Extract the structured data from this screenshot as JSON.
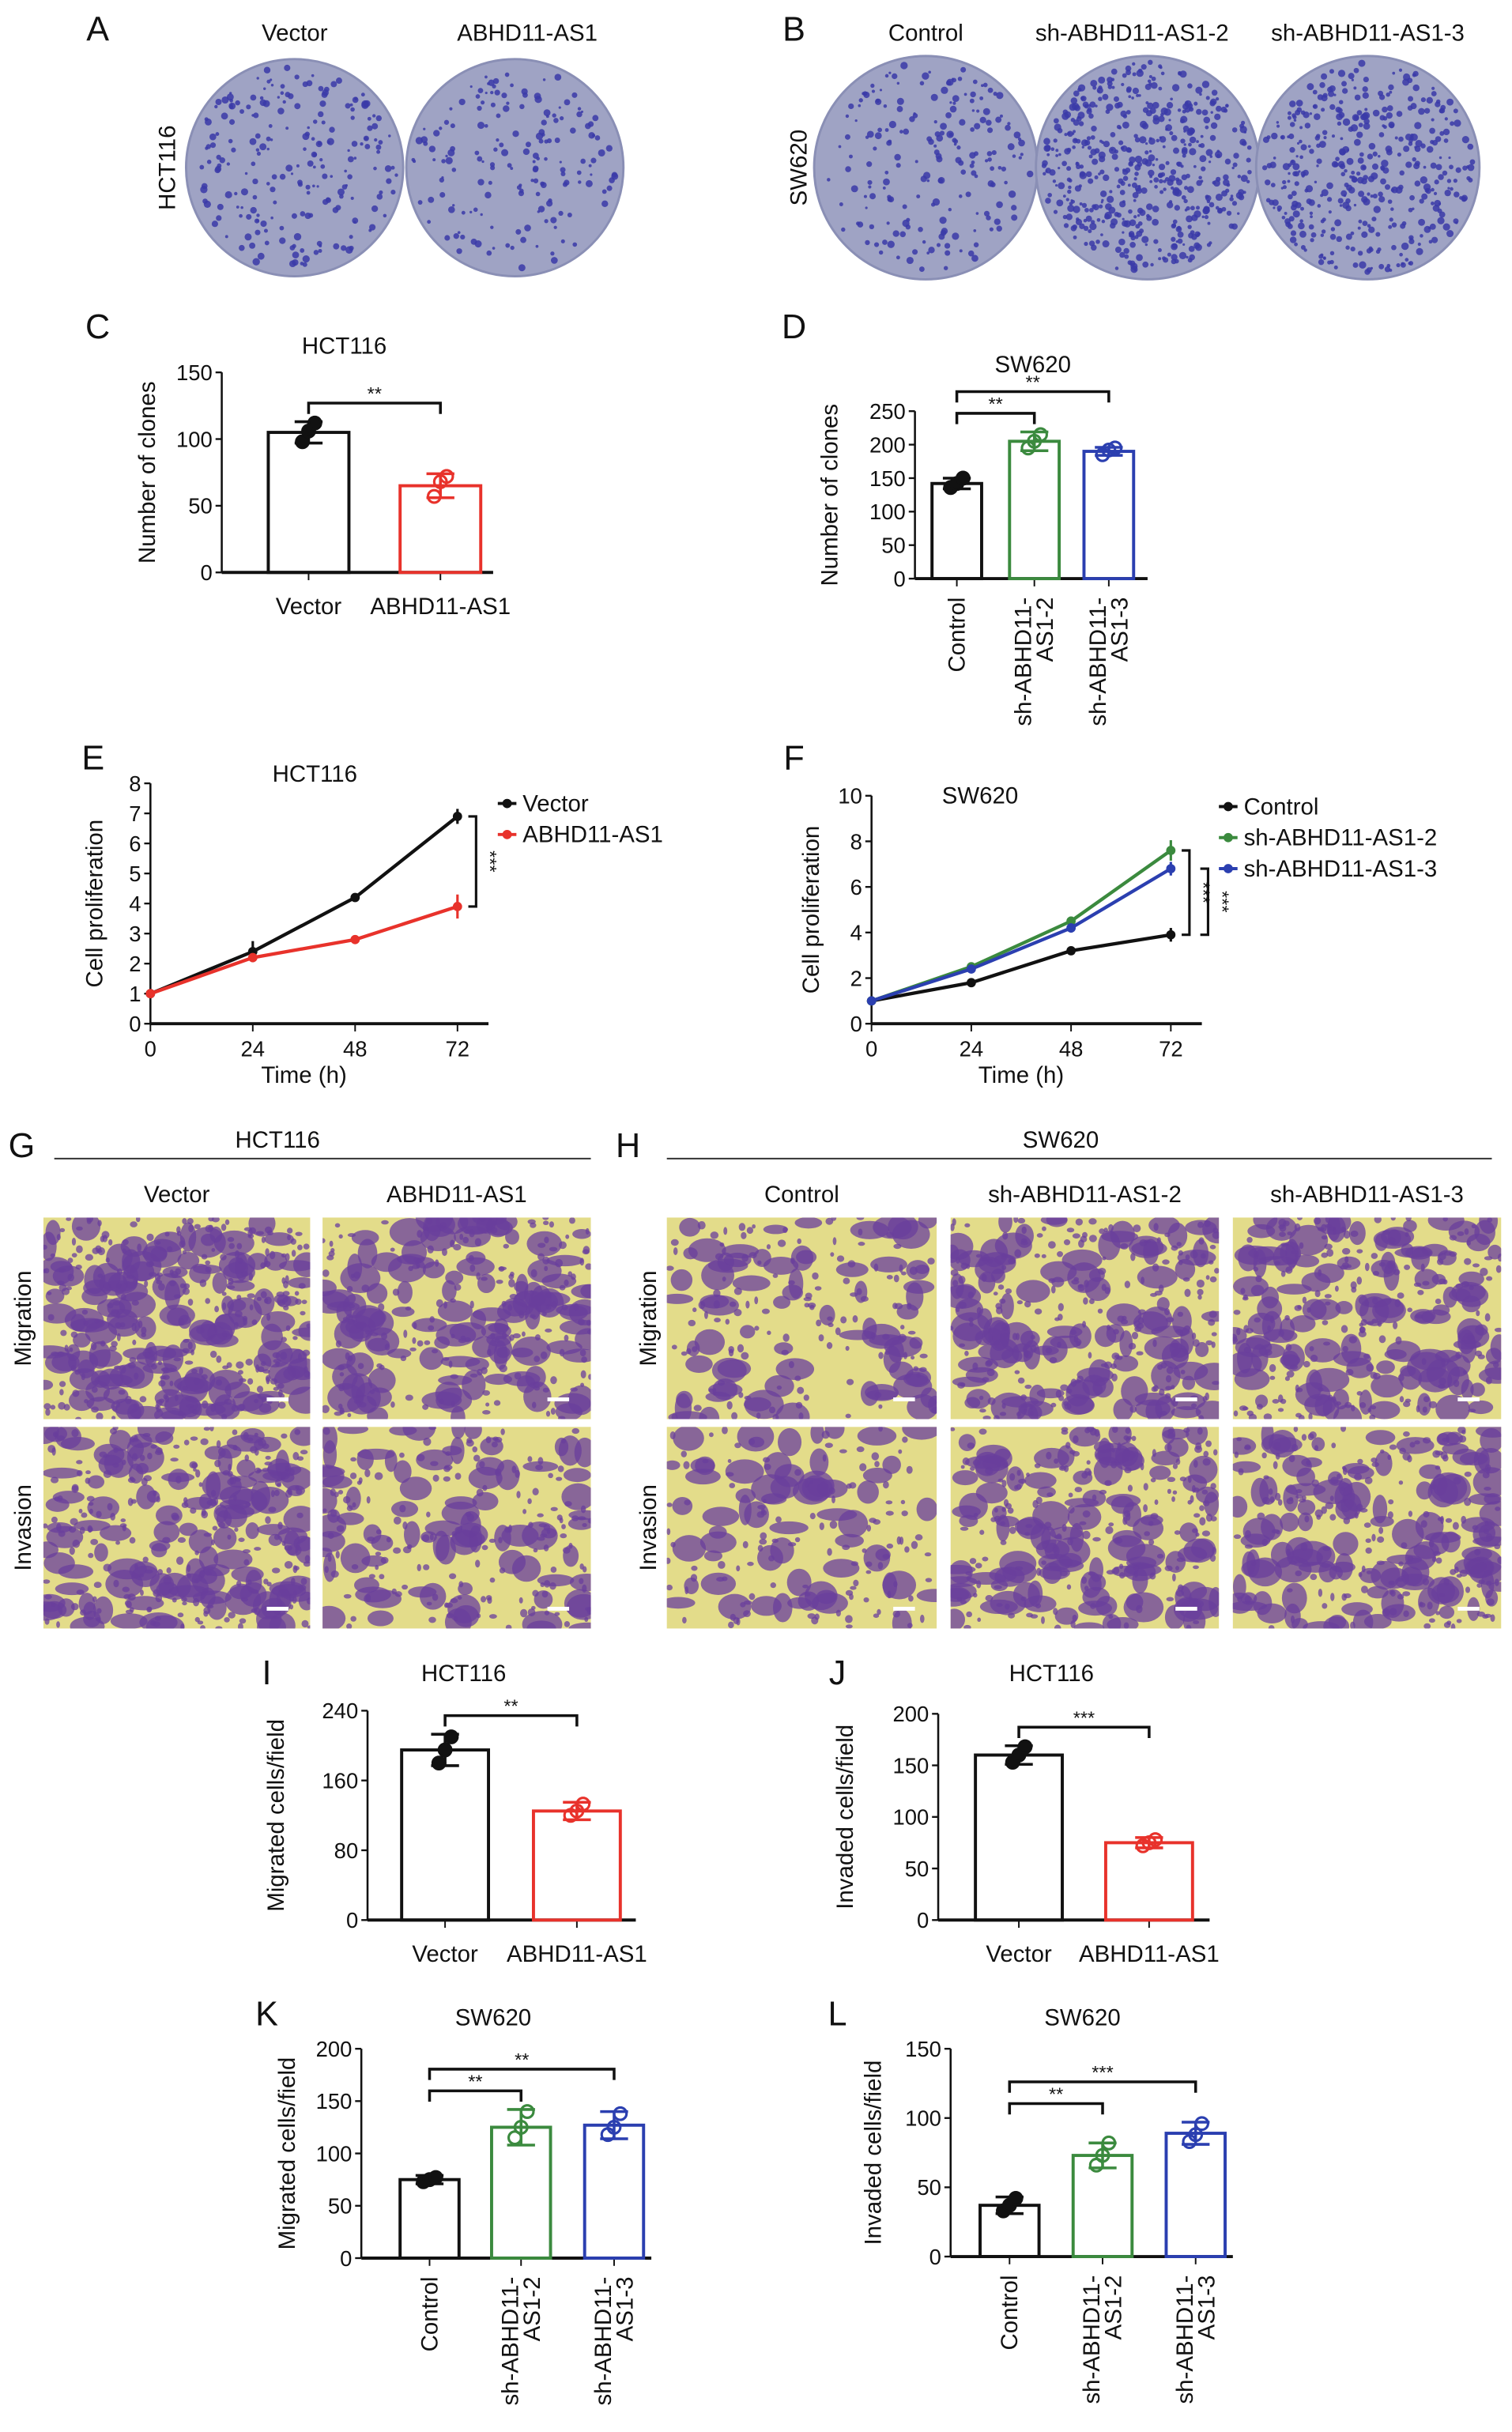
{
  "panels": {
    "A": {
      "letter": "A",
      "row_label": "HCT116",
      "col_labels": [
        "Vector",
        "ABHD11-AS1"
      ]
    },
    "B": {
      "letter": "B",
      "row_label": "SW620",
      "col_labels": [
        "Control",
        "sh-ABHD11-AS1-2",
        "sh-ABHD11-AS1-3"
      ]
    },
    "G": {
      "letter": "G",
      "header": "HCT116",
      "col_labels": [
        "Vector",
        "ABHD11-AS1"
      ],
      "row_labels": [
        "Migration",
        "Invasion"
      ]
    },
    "H": {
      "letter": "H",
      "header": "SW620",
      "col_labels": [
        "Control",
        "sh-ABHD11-AS1-2",
        "sh-ABHD11-AS1-3"
      ],
      "row_labels": [
        "Migration",
        "Invasion"
      ]
    }
  },
  "colors": {
    "black": "#111111",
    "red": "#e8322b",
    "green": "#3b8a3e",
    "blue": "#2b3fb0",
    "plate": "#9fa3c4",
    "colony": "#3a3aa8",
    "membrane": "#e3dc8a",
    "stain": "#6a3f9c"
  },
  "chart_data": [
    {
      "id": "C",
      "letter": "C",
      "type": "bar",
      "title": "HCT116",
      "ylabel": "Number of clones",
      "xlabel": "",
      "categories": [
        "Vector",
        "ABHD11-AS1"
      ],
      "values": [
        105,
        65
      ],
      "errors": [
        8,
        9
      ],
      "points": [
        [
          98,
          106,
          112
        ],
        [
          57,
          68,
          72
        ]
      ],
      "colors": [
        "#111111",
        "#e8322b"
      ],
      "ylim": [
        0,
        150
      ],
      "yticks": [
        0,
        50,
        100,
        150
      ],
      "xlabel_rotated": false,
      "significance": [
        {
          "from": 0,
          "to": 1,
          "label": "**"
        }
      ]
    },
    {
      "id": "D",
      "letter": "D",
      "type": "bar",
      "title": "SW620",
      "ylabel": "Number of clones",
      "xlabel": "",
      "categories": [
        "Control",
        "sh-ABHD11-AS1-2",
        "sh-ABHD11-AS1-3"
      ],
      "category_lines": [
        [
          "Control"
        ],
        [
          "sh-ABHD11-",
          "AS1-2"
        ],
        [
          "sh-ABHD11-",
          "AS1-3"
        ]
      ],
      "values": [
        142,
        205,
        190
      ],
      "errors": [
        8,
        14,
        6
      ],
      "points": [
        [
          136,
          142,
          150
        ],
        [
          195,
          205,
          215
        ],
        [
          185,
          192,
          195
        ]
      ],
      "colors": [
        "#111111",
        "#3b8a3e",
        "#2b3fb0"
      ],
      "ylim": [
        0,
        250
      ],
      "yticks": [
        0,
        50,
        100,
        150,
        200,
        250
      ],
      "xlabel_rotated": true,
      "significance": [
        {
          "from": 0,
          "to": 1,
          "label": "**"
        },
        {
          "from": 0,
          "to": 2,
          "label": "**"
        }
      ]
    },
    {
      "id": "E",
      "letter": "E",
      "type": "line",
      "title": "HCT116",
      "ylabel": "Cell proliferation",
      "xlabel": "Time (h)",
      "x": [
        0,
        24,
        48,
        72
      ],
      "xticks": [
        0,
        24,
        48,
        72
      ],
      "ylim": [
        0,
        8
      ],
      "yticks": [
        0,
        1,
        2,
        3,
        4,
        5,
        6,
        7,
        8
      ],
      "series": [
        {
          "name": "Vector",
          "values": [
            1.0,
            2.4,
            4.2,
            6.9
          ],
          "errors": [
            0.05,
            0.35,
            0.08,
            0.25
          ],
          "color": "#111111"
        },
        {
          "name": "ABHD11-AS1",
          "values": [
            1.0,
            2.2,
            2.8,
            3.9
          ],
          "errors": [
            0.05,
            0.1,
            0.15,
            0.4
          ],
          "color": "#e8322b"
        }
      ],
      "legend": "top-right",
      "significance": [
        {
          "label": "***",
          "series": [
            0,
            1
          ]
        }
      ]
    },
    {
      "id": "F",
      "letter": "F",
      "type": "line",
      "title": "SW620",
      "ylabel": "Cell proliferation",
      "xlabel": "Time (h)",
      "x": [
        0,
        24,
        48,
        72
      ],
      "xticks": [
        0,
        24,
        48,
        72
      ],
      "ylim": [
        0,
        10
      ],
      "yticks": [
        0,
        2,
        4,
        6,
        8,
        10
      ],
      "series": [
        {
          "name": "Control",
          "values": [
            1.0,
            1.8,
            3.2,
            3.9
          ],
          "errors": [
            0.05,
            0.1,
            0.1,
            0.3
          ],
          "color": "#111111"
        },
        {
          "name": "sh-ABHD11-AS1-2",
          "values": [
            1.0,
            2.5,
            4.5,
            7.6
          ],
          "errors": [
            0.05,
            0.15,
            0.2,
            0.45
          ],
          "color": "#3b8a3e"
        },
        {
          "name": "sh-ABHD11-AS1-3",
          "values": [
            1.0,
            2.4,
            4.2,
            6.8
          ],
          "errors": [
            0.05,
            0.15,
            0.2,
            0.3
          ],
          "color": "#2b3fb0"
        }
      ],
      "legend": "top-right",
      "significance": [
        {
          "label": "***",
          "series": [
            0,
            1
          ]
        },
        {
          "label": "***",
          "series": [
            0,
            2
          ]
        }
      ]
    },
    {
      "id": "I",
      "letter": "I",
      "type": "bar",
      "title": "HCT116",
      "ylabel": "Migrated cells/field",
      "xlabel": "",
      "categories": [
        "Vector",
        "ABHD11-AS1"
      ],
      "values": [
        195,
        125
      ],
      "errors": [
        18,
        10
      ],
      "points": [
        [
          180,
          195,
          210
        ],
        [
          120,
          125,
          133
        ]
      ],
      "colors": [
        "#111111",
        "#e8322b"
      ],
      "ylim": [
        0,
        240
      ],
      "yticks": [
        0,
        80,
        160,
        240
      ],
      "xlabel_rotated": false,
      "significance": [
        {
          "from": 0,
          "to": 1,
          "label": "**"
        }
      ]
    },
    {
      "id": "J",
      "letter": "J",
      "type": "bar",
      "title": "HCT116",
      "ylabel": "Invaded cells/field",
      "xlabel": "",
      "categories": [
        "Vector",
        "ABHD11-AS1"
      ],
      "values": [
        160,
        75
      ],
      "errors": [
        9,
        5
      ],
      "points": [
        [
          153,
          160,
          168
        ],
        [
          72,
          75,
          78
        ]
      ],
      "colors": [
        "#111111",
        "#e8322b"
      ],
      "ylim": [
        0,
        200
      ],
      "yticks": [
        0,
        50,
        100,
        150,
        200
      ],
      "xlabel_rotated": false,
      "significance": [
        {
          "from": 0,
          "to": 1,
          "label": "***"
        }
      ]
    },
    {
      "id": "K",
      "letter": "K",
      "type": "bar",
      "title": "SW620",
      "ylabel": "Migrated cells/field",
      "xlabel": "",
      "categories": [
        "Control",
        "sh-ABHD11-AS1-2",
        "sh-ABHD11-AS1-3"
      ],
      "category_lines": [
        [
          "Control"
        ],
        [
          "sh-ABHD11-",
          "AS1-2"
        ],
        [
          "sh-ABHD11-",
          "AS1-3"
        ]
      ],
      "values": [
        75,
        125,
        127
      ],
      "errors": [
        4,
        17,
        13
      ],
      "points": [
        [
          73,
          75,
          77
        ],
        [
          115,
          125,
          140
        ],
        [
          118,
          125,
          138
        ]
      ],
      "colors": [
        "#111111",
        "#3b8a3e",
        "#2b3fb0"
      ],
      "ylim": [
        0,
        200
      ],
      "yticks": [
        0,
        50,
        100,
        150,
        200
      ],
      "xlabel_rotated": true,
      "significance": [
        {
          "from": 0,
          "to": 1,
          "label": "**"
        },
        {
          "from": 0,
          "to": 2,
          "label": "**"
        }
      ]
    },
    {
      "id": "L",
      "letter": "L",
      "type": "bar",
      "title": "SW620",
      "ylabel": "Invaded cells/field",
      "xlabel": "",
      "categories": [
        "Control",
        "sh-ABHD11-AS1-2",
        "sh-ABHD11-AS1-3"
      ],
      "category_lines": [
        [
          "Control"
        ],
        [
          "sh-ABHD11-",
          "AS1-2"
        ],
        [
          "sh-ABHD11-",
          "AS1-3"
        ]
      ],
      "values": [
        37,
        73,
        89
      ],
      "errors": [
        6,
        9,
        8
      ],
      "points": [
        [
          33,
          37,
          42
        ],
        [
          66,
          73,
          82
        ],
        [
          83,
          88,
          96
        ]
      ],
      "colors": [
        "#111111",
        "#3b8a3e",
        "#2b3fb0"
      ],
      "ylim": [
        0,
        150
      ],
      "yticks": [
        0,
        50,
        100,
        150
      ],
      "xlabel_rotated": true,
      "significance": [
        {
          "from": 0,
          "to": 1,
          "label": "**"
        },
        {
          "from": 0,
          "to": 2,
          "label": "***"
        }
      ]
    }
  ]
}
